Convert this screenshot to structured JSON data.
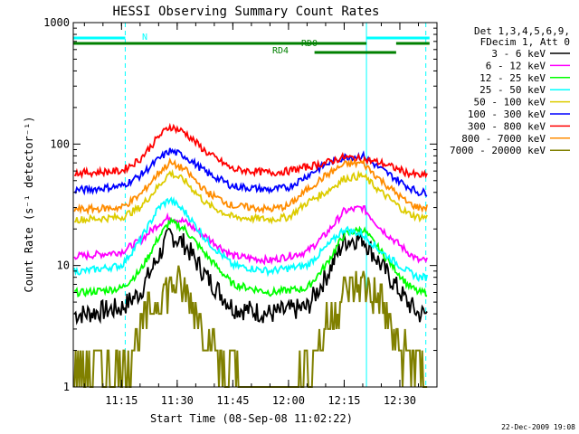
{
  "chart_data": {
    "type": "line",
    "title": "HESSI Observing Summary Count Rates",
    "xlabel": "Start Time (08-Sep-08 11:02:22)",
    "ylabel": "Count Rate (s⁻¹ detector⁻¹)",
    "y_scale": "log",
    "ylim": [
      1,
      1000
    ],
    "xlim": [
      "11:02",
      "12:40"
    ],
    "x_ticks": [
      "11:15",
      "11:30",
      "11:45",
      "12:00",
      "12:15",
      "12:30"
    ],
    "y_ticks": [
      "1",
      "10",
      "100",
      "1000"
    ],
    "grid": false,
    "legend_position": "right",
    "legend_header": [
      "Det 1,3,4,5,6,9,",
      "FDecim 1, Att 0"
    ],
    "series": [
      {
        "name": "3 - 6 keV",
        "color": "#000000",
        "x": [
          "11:05",
          "11:15",
          "11:20",
          "11:25",
          "11:28",
          "11:32",
          "11:38",
          "11:45",
          "11:55",
          "12:05",
          "12:10",
          "12:15",
          "12:20",
          "12:25",
          "12:32",
          "12:35"
        ],
        "values": [
          4,
          4.5,
          6,
          12,
          18,
          15,
          8,
          4.5,
          4,
          4.5,
          8,
          16,
          17,
          10,
          5,
          4
        ]
      },
      {
        "name": "6 - 12 keV",
        "color": "#ff00ff",
        "x": [
          "11:05",
          "11:15",
          "11:20",
          "11:25",
          "11:28",
          "11:32",
          "11:38",
          "11:45",
          "11:55",
          "12:05",
          "12:10",
          "12:15",
          "12:20",
          "12:25",
          "12:32",
          "12:35"
        ],
        "values": [
          12,
          13,
          16,
          22,
          25,
          23,
          17,
          12,
          11,
          13,
          18,
          28,
          30,
          20,
          13,
          11
        ]
      },
      {
        "name": "12 - 25 keV",
        "color": "#00ff00",
        "x": [
          "11:05",
          "11:15",
          "11:20",
          "11:25",
          "11:28",
          "11:32",
          "11:38",
          "11:45",
          "11:55",
          "12:05",
          "12:10",
          "12:15",
          "12:20",
          "12:25",
          "12:32",
          "12:35"
        ],
        "values": [
          6,
          6.5,
          9,
          17,
          23,
          20,
          12,
          7,
          6,
          6.5,
          10,
          18,
          20,
          13,
          7,
          6
        ]
      },
      {
        "name": "25 - 50 keV",
        "color": "#00ffff",
        "x": [
          "11:05",
          "11:15",
          "11:20",
          "11:25",
          "11:28",
          "11:32",
          "11:38",
          "11:45",
          "11:55",
          "12:05",
          "12:10",
          "12:15",
          "12:20",
          "12:25",
          "12:32",
          "12:35"
        ],
        "values": [
          9,
          10,
          16,
          30,
          35,
          28,
          16,
          10,
          9,
          10,
          14,
          20,
          18,
          13,
          9,
          8
        ]
      },
      {
        "name": "50 - 100 keV",
        "color": "#ddcc00",
        "x": [
          "11:05",
          "11:15",
          "11:20",
          "11:25",
          "11:28",
          "11:32",
          "11:38",
          "11:45",
          "11:55",
          "12:00",
          "12:05",
          "12:10",
          "12:15",
          "12:20",
          "12:25",
          "12:32",
          "12:35"
        ],
        "values": [
          24,
          25,
          30,
          45,
          58,
          50,
          32,
          25,
          24,
          25,
          33,
          40,
          52,
          55,
          40,
          27,
          25
        ]
      },
      {
        "name": "100 - 300 keV",
        "color": "#0000ff",
        "x": [
          "11:05",
          "11:15",
          "11:20",
          "11:25",
          "11:28",
          "11:32",
          "11:38",
          "11:45",
          "11:55",
          "12:00",
          "12:05",
          "12:10",
          "12:15",
          "12:20",
          "12:25",
          "12:32",
          "12:35"
        ],
        "values": [
          42,
          45,
          55,
          75,
          88,
          80,
          58,
          45,
          42,
          44,
          55,
          68,
          78,
          80,
          62,
          45,
          40
        ]
      },
      {
        "name": "300 - 800 keV",
        "color": "#ff0000",
        "x": [
          "11:05",
          "11:15",
          "11:20",
          "11:25",
          "11:28",
          "11:32",
          "11:38",
          "11:45",
          "11:55",
          "12:00",
          "12:05",
          "12:10",
          "12:15",
          "12:20",
          "12:25",
          "12:32",
          "12:35"
        ],
        "values": [
          58,
          60,
          75,
          115,
          140,
          125,
          85,
          62,
          58,
          60,
          65,
          70,
          78,
          75,
          70,
          58,
          55
        ]
      },
      {
        "name": "800 - 7000 keV",
        "color": "#ff8c00",
        "x": [
          "11:05",
          "11:15",
          "11:20",
          "11:25",
          "11:28",
          "11:32",
          "11:38",
          "11:45",
          "11:55",
          "12:00",
          "12:05",
          "12:10",
          "12:15",
          "12:20",
          "12:25",
          "12:32",
          "12:35"
        ],
        "values": [
          29,
          30,
          38,
          58,
          70,
          62,
          40,
          31,
          29,
          31,
          42,
          55,
          68,
          70,
          50,
          33,
          30
        ]
      },
      {
        "name": "7000 - 20000 keV",
        "color": "#808000",
        "x": [
          "11:05",
          "11:15",
          "11:18",
          "11:22",
          "11:26",
          "11:30",
          "11:34",
          "11:38",
          "11:42",
          "11:50",
          "12:00",
          "12:05",
          "12:10",
          "12:15",
          "12:20",
          "12:25",
          "12:30",
          "12:35"
        ],
        "values": [
          1.5,
          1.5,
          2,
          4,
          6,
          7,
          5,
          3,
          1.5,
          1,
          1,
          1.5,
          3,
          6,
          7,
          5,
          2,
          1.5
        ]
      }
    ],
    "annotations": {
      "vertical_lines": [
        {
          "x": "11:16",
          "color": "#00ffff",
          "style": "dashed"
        },
        {
          "x": "12:21",
          "color": "#00ffff",
          "style": "solid"
        },
        {
          "x": "12:37",
          "color": "#00ffff",
          "style": "dashed"
        }
      ],
      "bars": [
        {
          "label": "N",
          "color": "#00ffff",
          "segments": [
            [
              "11:02",
              "11:16"
            ],
            [
              "12:21",
              "12:38"
            ]
          ]
        },
        {
          "label": "RD0",
          "color": "#008000",
          "segments": [
            [
              "11:02",
              "12:21"
            ],
            [
              "12:29",
              "12:38"
            ]
          ]
        },
        {
          "label": "RD4",
          "color": "#008000",
          "segments": [
            [
              "12:07",
              "12:29"
            ]
          ]
        }
      ]
    }
  },
  "footer": {
    "date": "22-Dec-2009 19:08"
  }
}
